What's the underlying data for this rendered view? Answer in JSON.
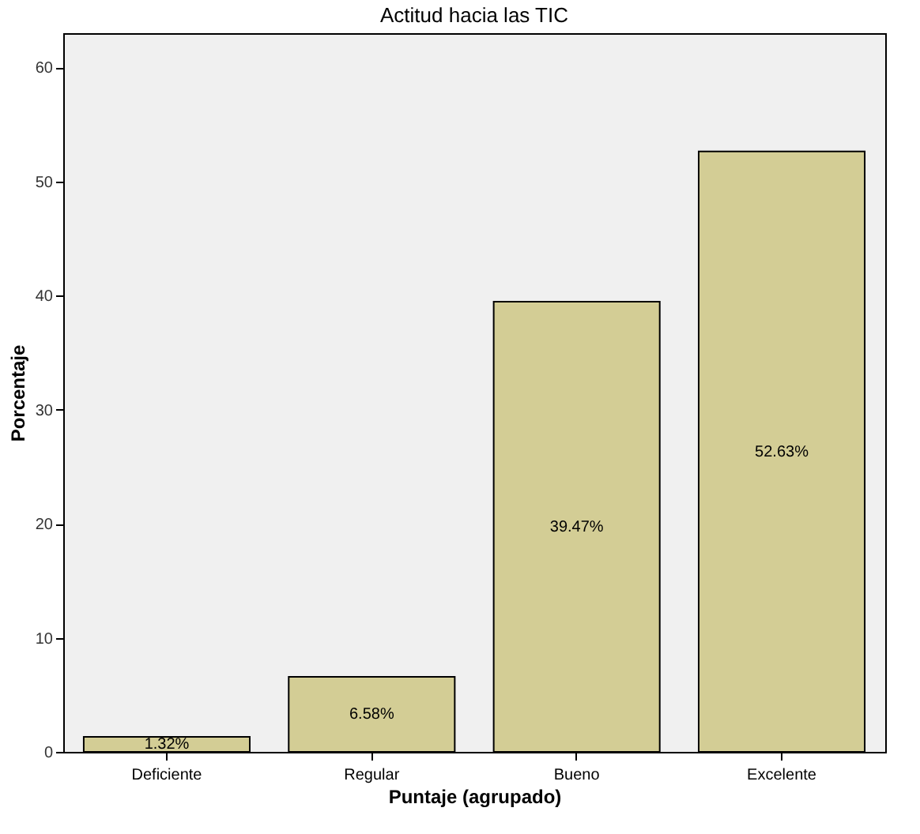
{
  "chart_data": {
    "type": "bar",
    "title": "Actitud hacia las TIC",
    "xlabel": "Puntaje (agrupado)",
    "ylabel": "Porcentaje",
    "categories": [
      "Deficiente",
      "Regular",
      "Bueno",
      "Excelente"
    ],
    "values": [
      1.32,
      6.58,
      39.47,
      52.63
    ],
    "value_labels": [
      "1.32%",
      "6.58%",
      "39.47%",
      "52.63%"
    ],
    "color": "#d3cd95",
    "ylim": [
      0,
      63
    ],
    "yticks": [
      0,
      10,
      20,
      30,
      40,
      50,
      60
    ],
    "grid": false
  }
}
